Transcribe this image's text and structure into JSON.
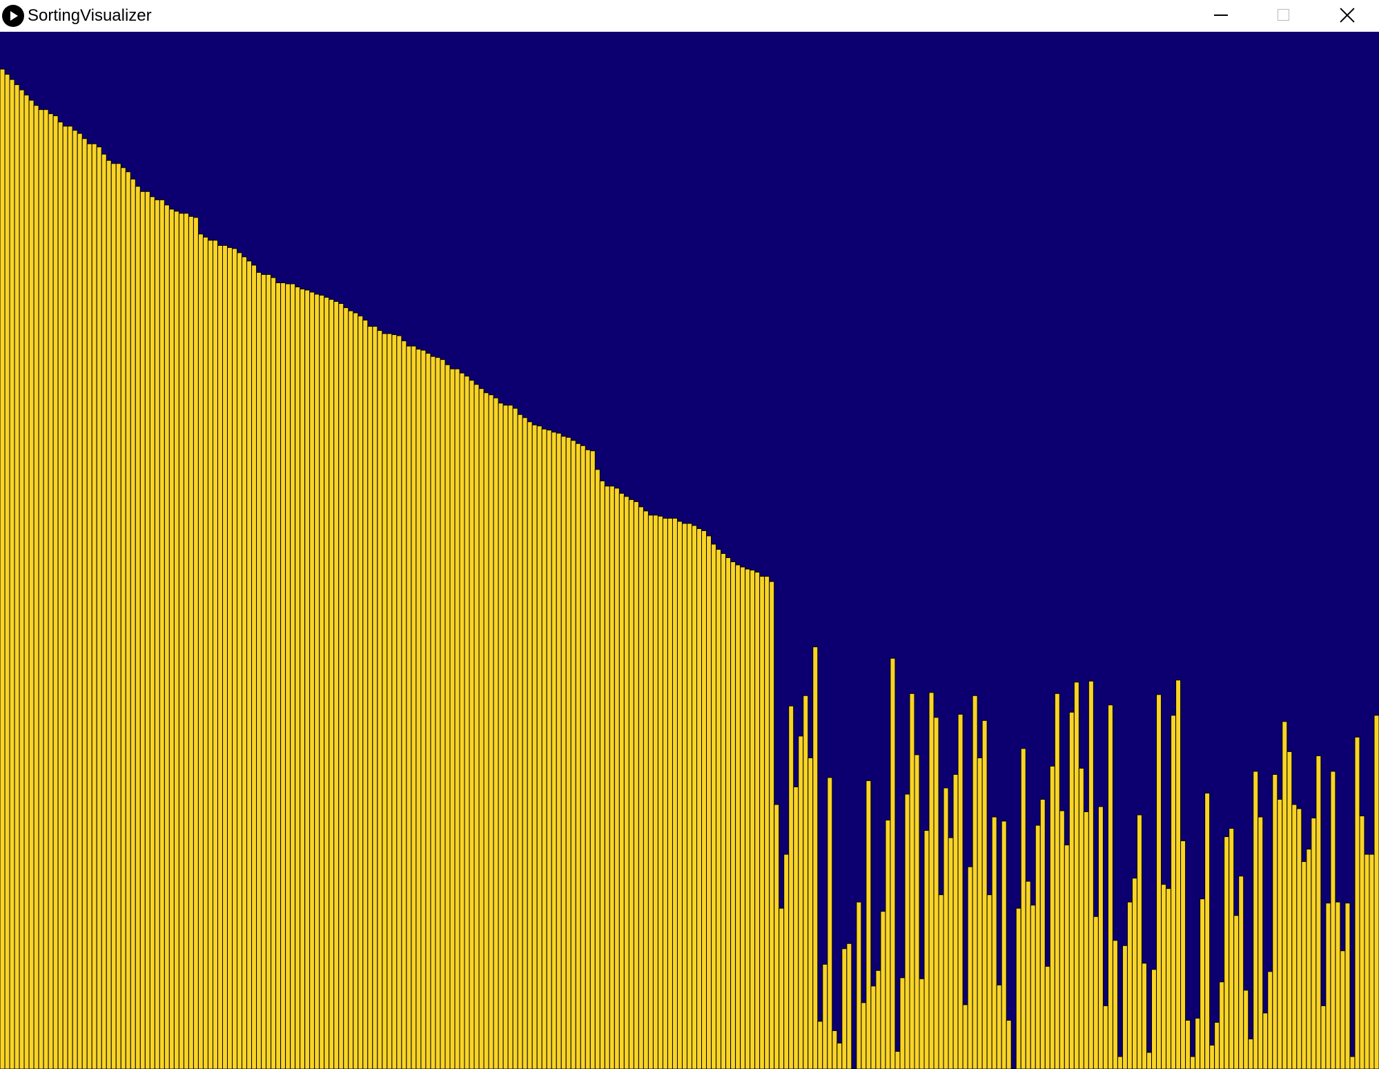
{
  "window": {
    "title": "SortingVisualizer",
    "icon": "play-circle-icon",
    "controls": {
      "minimize": "minimize-icon",
      "maximize": "maximize-icon",
      "close": "close-icon"
    }
  },
  "canvas": {
    "background_color": "#0c0070",
    "bar_color": "#f9d426",
    "bar_border_color": "#000000"
  },
  "chart_data": {
    "type": "bar",
    "note_values": "bar heights as fraction of the canvas height",
    "values": [
      0.964,
      0.959,
      0.954,
      0.949,
      0.944,
      0.939,
      0.934,
      0.929,
      0.925,
      0.925,
      0.921,
      0.919,
      0.913,
      0.909,
      0.909,
      0.905,
      0.902,
      0.897,
      0.892,
      0.892,
      0.889,
      0.882,
      0.876,
      0.873,
      0.873,
      0.869,
      0.865,
      0.858,
      0.851,
      0.846,
      0.846,
      0.841,
      0.838,
      0.838,
      0.833,
      0.829,
      0.827,
      0.825,
      0.825,
      0.822,
      0.821,
      0.805,
      0.802,
      0.799,
      0.799,
      0.794,
      0.794,
      0.792,
      0.791,
      0.787,
      0.783,
      0.779,
      0.775,
      0.768,
      0.766,
      0.766,
      0.763,
      0.758,
      0.758,
      0.757,
      0.757,
      0.754,
      0.752,
      0.751,
      0.749,
      0.747,
      0.746,
      0.744,
      0.742,
      0.74,
      0.738,
      0.734,
      0.731,
      0.729,
      0.726,
      0.722,
      0.716,
      0.716,
      0.712,
      0.709,
      0.709,
      0.708,
      0.707,
      0.702,
      0.697,
      0.697,
      0.694,
      0.693,
      0.69,
      0.687,
      0.686,
      0.684,
      0.679,
      0.675,
      0.675,
      0.671,
      0.668,
      0.664,
      0.66,
      0.656,
      0.652,
      0.65,
      0.647,
      0.642,
      0.64,
      0.64,
      0.637,
      0.631,
      0.628,
      0.624,
      0.621,
      0.62,
      0.617,
      0.616,
      0.614,
      0.613,
      0.61,
      0.609,
      0.606,
      0.603,
      0.601,
      0.597,
      0.596,
      0.578,
      0.567,
      0.562,
      0.562,
      0.56,
      0.555,
      0.552,
      0.549,
      0.547,
      0.542,
      0.538,
      0.534,
      0.534,
      0.533,
      0.531,
      0.531,
      0.531,
      0.528,
      0.526,
      0.526,
      0.524,
      0.521,
      0.519,
      0.514,
      0.506,
      0.501,
      0.497,
      0.493,
      0.489,
      0.486,
      0.484,
      0.482,
      0.481,
      0.479,
      0.475,
      0.475,
      0.47,
      0.255,
      0.155,
      0.207,
      0.35,
      0.272,
      0.321,
      0.36,
      0.3,
      0.407,
      0.046,
      0.101,
      0.281,
      0.037,
      0.025,
      0.116,
      0.121,
      0.0,
      0.161,
      0.064,
      0.278,
      0.08,
      0.095,
      0.152,
      0.24,
      0.396,
      0.017,
      0.088,
      0.265,
      0.362,
      0.303,
      0.087,
      0.23,
      0.363,
      0.339,
      0.168,
      0.271,
      0.223,
      0.284,
      0.342,
      0.062,
      0.195,
      0.36,
      0.3,
      0.336,
      0.168,
      0.243,
      0.081,
      0.239,
      0.047,
      0.0,
      0.155,
      0.309,
      0.181,
      0.158,
      0.235,
      0.26,
      0.099,
      0.292,
      0.362,
      0.249,
      0.216,
      0.344,
      0.373,
      0.29,
      0.248,
      0.374,
      0.147,
      0.253,
      0.061,
      0.351,
      0.124,
      0.012,
      0.119,
      0.161,
      0.184,
      0.245,
      0.102,
      0.016,
      0.096,
      0.361,
      0.178,
      0.174,
      0.341,
      0.375,
      0.22,
      0.047,
      0.012,
      0.049,
      0.164,
      0.266,
      0.023,
      0.045,
      0.084,
      0.224,
      0.232,
      0.148,
      0.186,
      0.076,
      0.029,
      0.287,
      0.243,
      0.054,
      0.094,
      0.284,
      0.26,
      0.335,
      0.306,
      0.255,
      0.251,
      0.2,
      0.212,
      0.242,
      0.302,
      0.061,
      0.16,
      0.287,
      0.161,
      0.114,
      0.16,
      0.012,
      0.32,
      0.244,
      0.207,
      0.207,
      0.341
    ]
  }
}
